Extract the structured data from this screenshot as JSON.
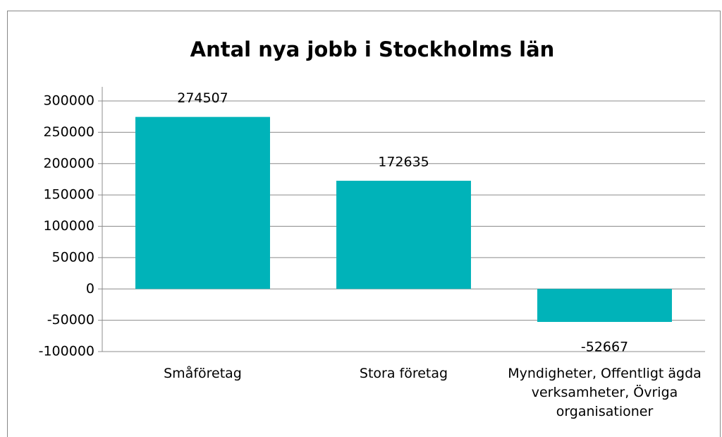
{
  "chart_data": {
    "type": "bar",
    "title": "Antal nya jobb i Stockholms län",
    "categories": [
      "Småföretag",
      "Stora företag",
      "Myndigheter, Offentligt ägda verksamheter, Övriga organisationer"
    ],
    "values": [
      274507,
      172635,
      -52667
    ],
    "color": "#00b3b9",
    "ylim": [
      -100000,
      300000
    ],
    "yticks": [
      -100000,
      -50000,
      0,
      50000,
      100000,
      150000,
      200000,
      250000,
      300000
    ],
    "grid": true
  }
}
